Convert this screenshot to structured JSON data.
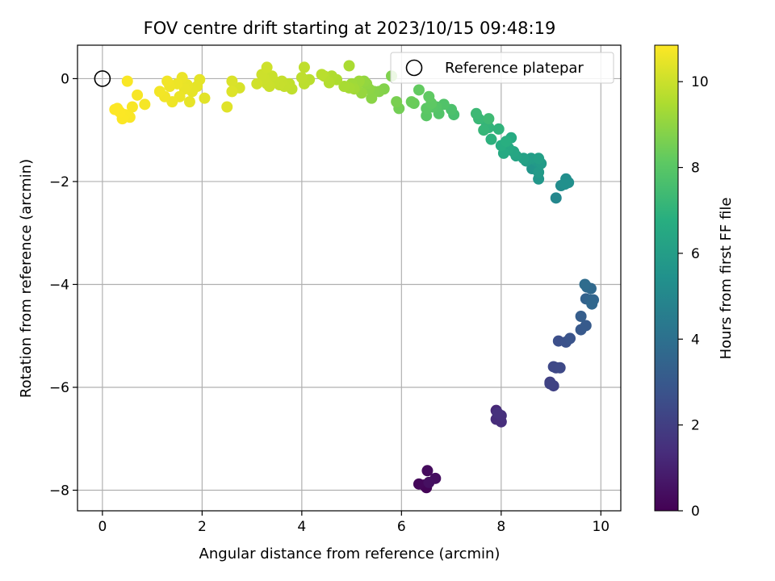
{
  "chart_data": {
    "type": "scatter",
    "title": "FOV centre drift starting at 2023/10/15 09:48:19",
    "xlabel": "Angular distance from reference (arcmin)",
    "ylabel": "Rotation from reference (arcmin)",
    "xlim": [
      -0.5,
      10.4
    ],
    "ylim": [
      -8.4,
      0.65
    ],
    "xticks": [
      0,
      2,
      4,
      6,
      8,
      10
    ],
    "yticks": [
      -8,
      -6,
      -4,
      -2,
      0
    ],
    "xtick_labels": [
      "0",
      "2",
      "4",
      "6",
      "8",
      "10"
    ],
    "ytick_labels": [
      "−8",
      "−6",
      "−4",
      "−2",
      "0"
    ],
    "grid": true,
    "legend": {
      "placement": "top-right",
      "entries": [
        "Reference platepar"
      ]
    },
    "reference_point": {
      "x": 0,
      "y": 0
    },
    "colorbar": {
      "label": "Hours from first FF file",
      "colormap": "viridis",
      "range": [
        0,
        10.85
      ],
      "ticks": [
        0,
        2,
        4,
        6,
        8,
        10
      ],
      "tick_labels": [
        "0",
        "2",
        "4",
        "6",
        "8",
        "10"
      ]
    },
    "points": [
      [
        6.45,
        -7.9,
        0.0
      ],
      [
        6.5,
        -7.95,
        0.1
      ],
      [
        6.35,
        -7.88,
        0.2
      ],
      [
        6.52,
        -7.62,
        0.3
      ],
      [
        6.68,
        -7.77,
        0.4
      ],
      [
        6.55,
        -7.85,
        0.45
      ],
      [
        7.9,
        -6.45,
        1.2
      ],
      [
        7.95,
        -6.62,
        1.3
      ],
      [
        8.0,
        -6.67,
        1.4
      ],
      [
        7.9,
        -6.62,
        1.35
      ],
      [
        8.0,
        -6.55,
        1.45
      ],
      [
        7.93,
        -6.5,
        1.5
      ],
      [
        8.98,
        -5.9,
        2.0
      ],
      [
        9.05,
        -5.97,
        2.1
      ],
      [
        8.98,
        -5.93,
        2.15
      ],
      [
        9.1,
        -5.62,
        2.3
      ],
      [
        9.05,
        -5.6,
        2.35
      ],
      [
        9.18,
        -5.62,
        2.4
      ],
      [
        9.15,
        -5.1,
        2.6
      ],
      [
        9.3,
        -5.12,
        2.7
      ],
      [
        9.38,
        -5.05,
        2.8
      ],
      [
        9.6,
        -4.88,
        3.0
      ],
      [
        9.7,
        -4.8,
        3.1
      ],
      [
        9.6,
        -4.62,
        3.2
      ],
      [
        9.7,
        -4.28,
        3.4
      ],
      [
        9.78,
        -4.3,
        3.5
      ],
      [
        9.85,
        -4.3,
        3.55
      ],
      [
        9.82,
        -4.38,
        3.6
      ],
      [
        9.8,
        -4.08,
        3.7
      ],
      [
        9.72,
        -4.05,
        3.75
      ],
      [
        9.68,
        -4.0,
        3.8
      ],
      [
        9.1,
        -2.32,
        5.0
      ],
      [
        9.2,
        -2.08,
        5.2
      ],
      [
        9.3,
        -1.95,
        5.3
      ],
      [
        9.35,
        -2.02,
        5.35
      ],
      [
        9.28,
        -2.05,
        5.4
      ],
      [
        8.62,
        -1.75,
        5.6
      ],
      [
        8.75,
        -1.95,
        5.7
      ],
      [
        8.7,
        -1.6,
        5.8
      ],
      [
        8.75,
        -1.82,
        5.85
      ],
      [
        8.8,
        -1.65,
        5.9
      ],
      [
        8.6,
        -1.55,
        6.0
      ],
      [
        8.5,
        -1.6,
        6.05
      ],
      [
        8.75,
        -1.55,
        6.1
      ],
      [
        8.45,
        -1.55,
        6.15
      ],
      [
        8.3,
        -1.5,
        6.3
      ],
      [
        8.25,
        -1.42,
        6.4
      ],
      [
        8.15,
        -1.35,
        6.5
      ],
      [
        8.05,
        -1.45,
        6.55
      ],
      [
        8.2,
        -1.15,
        6.6
      ],
      [
        8.0,
        -1.3,
        6.7
      ],
      [
        8.1,
        -1.22,
        6.8
      ],
      [
        7.8,
        -1.18,
        6.9
      ],
      [
        7.95,
        -0.98,
        7.0
      ],
      [
        7.75,
        -0.95,
        7.05
      ],
      [
        7.7,
        -0.85,
        7.1
      ],
      [
        7.65,
        -1.0,
        7.15
      ],
      [
        7.55,
        -0.78,
        7.25
      ],
      [
        7.5,
        -0.68,
        7.3
      ],
      [
        7.75,
        -0.78,
        7.35
      ],
      [
        7.05,
        -0.7,
        7.6
      ],
      [
        7.0,
        -0.6,
        7.7
      ],
      [
        6.85,
        -0.5,
        7.8
      ],
      [
        6.75,
        -0.68,
        7.85
      ],
      [
        6.7,
        -0.55,
        7.9
      ],
      [
        6.62,
        -0.55,
        7.95
      ],
      [
        6.5,
        -0.72,
        8.0
      ],
      [
        6.5,
        -0.58,
        8.05
      ],
      [
        6.6,
        -0.48,
        8.1
      ],
      [
        6.55,
        -0.35,
        8.15
      ],
      [
        6.35,
        -0.22,
        8.2
      ],
      [
        6.25,
        -0.48,
        8.3
      ],
      [
        6.2,
        -0.45,
        8.35
      ],
      [
        5.95,
        -0.58,
        8.5
      ],
      [
        5.9,
        -0.45,
        8.6
      ],
      [
        5.8,
        0.05,
        8.7
      ],
      [
        5.65,
        -0.2,
        8.75
      ],
      [
        5.55,
        -0.25,
        8.8
      ],
      [
        5.45,
        -0.25,
        8.85
      ],
      [
        5.4,
        -0.38,
        8.9
      ],
      [
        5.35,
        -0.2,
        8.95
      ],
      [
        5.3,
        -0.1,
        9.0
      ],
      [
        5.25,
        -0.05,
        9.05
      ],
      [
        5.2,
        -0.28,
        9.1
      ],
      [
        5.1,
        -0.15,
        9.15
      ],
      [
        5.15,
        -0.05,
        9.2
      ],
      [
        5.0,
        -0.1,
        9.25
      ],
      [
        5.05,
        -0.2,
        9.3
      ],
      [
        4.95,
        -0.18,
        9.35
      ],
      [
        4.85,
        -0.15,
        9.4
      ],
      [
        4.95,
        0.25,
        9.45
      ],
      [
        4.7,
        -0.02,
        9.5
      ],
      [
        4.6,
        0.05,
        9.55
      ],
      [
        4.55,
        -0.08,
        9.6
      ],
      [
        4.45,
        0.05,
        9.65
      ],
      [
        4.4,
        0.08,
        9.7
      ],
      [
        4.15,
        -0.02,
        9.72
      ],
      [
        4.05,
        -0.1,
        9.75
      ],
      [
        4.0,
        0.02,
        9.78
      ],
      [
        4.05,
        0.22,
        9.8
      ],
      [
        3.8,
        -0.2,
        9.82
      ],
      [
        3.75,
        -0.1,
        9.84
      ],
      [
        3.7,
        -0.12,
        9.86
      ],
      [
        3.65,
        -0.15,
        9.88
      ],
      [
        3.6,
        -0.05,
        9.9
      ],
      [
        3.55,
        -0.12,
        9.92
      ],
      [
        3.45,
        -0.05,
        9.94
      ],
      [
        3.4,
        0.05,
        9.96
      ],
      [
        3.35,
        -0.15,
        9.98
      ],
      [
        3.3,
        -0.1,
        10.0
      ],
      [
        3.25,
        0.0,
        10.02
      ],
      [
        3.2,
        0.08,
        10.04
      ],
      [
        3.3,
        0.22,
        10.06
      ],
      [
        3.1,
        -0.1,
        10.08
      ],
      [
        2.75,
        -0.18,
        10.2
      ],
      [
        2.6,
        -0.05,
        10.25
      ],
      [
        2.6,
        -0.25,
        10.3
      ],
      [
        2.5,
        -0.55,
        10.35
      ],
      [
        2.05,
        -0.38,
        10.4
      ],
      [
        1.95,
        -0.02,
        10.42
      ],
      [
        1.9,
        -0.15,
        10.44
      ],
      [
        1.8,
        -0.25,
        10.46
      ],
      [
        1.75,
        -0.45,
        10.48
      ],
      [
        1.7,
        -0.12,
        10.5
      ],
      [
        1.65,
        -0.2,
        10.52
      ],
      [
        1.6,
        0.02,
        10.54
      ],
      [
        1.55,
        -0.35,
        10.56
      ],
      [
        1.5,
        -0.1,
        10.58
      ],
      [
        1.4,
        -0.45,
        10.6
      ],
      [
        1.35,
        -0.15,
        10.62
      ],
      [
        1.3,
        -0.05,
        10.64
      ],
      [
        1.25,
        -0.35,
        10.66
      ],
      [
        1.15,
        -0.25,
        10.68
      ],
      [
        0.85,
        -0.5,
        10.72
      ],
      [
        0.7,
        -0.32,
        10.74
      ],
      [
        0.6,
        -0.55,
        10.76
      ],
      [
        0.55,
        -0.75,
        10.78
      ],
      [
        0.5,
        -0.05,
        10.79
      ],
      [
        0.45,
        -0.7,
        10.8
      ],
      [
        0.4,
        -0.78,
        10.82
      ],
      [
        0.35,
        -0.65,
        10.83
      ],
      [
        0.3,
        -0.58,
        10.84
      ],
      [
        0.25,
        -0.6,
        10.85
      ]
    ]
  }
}
